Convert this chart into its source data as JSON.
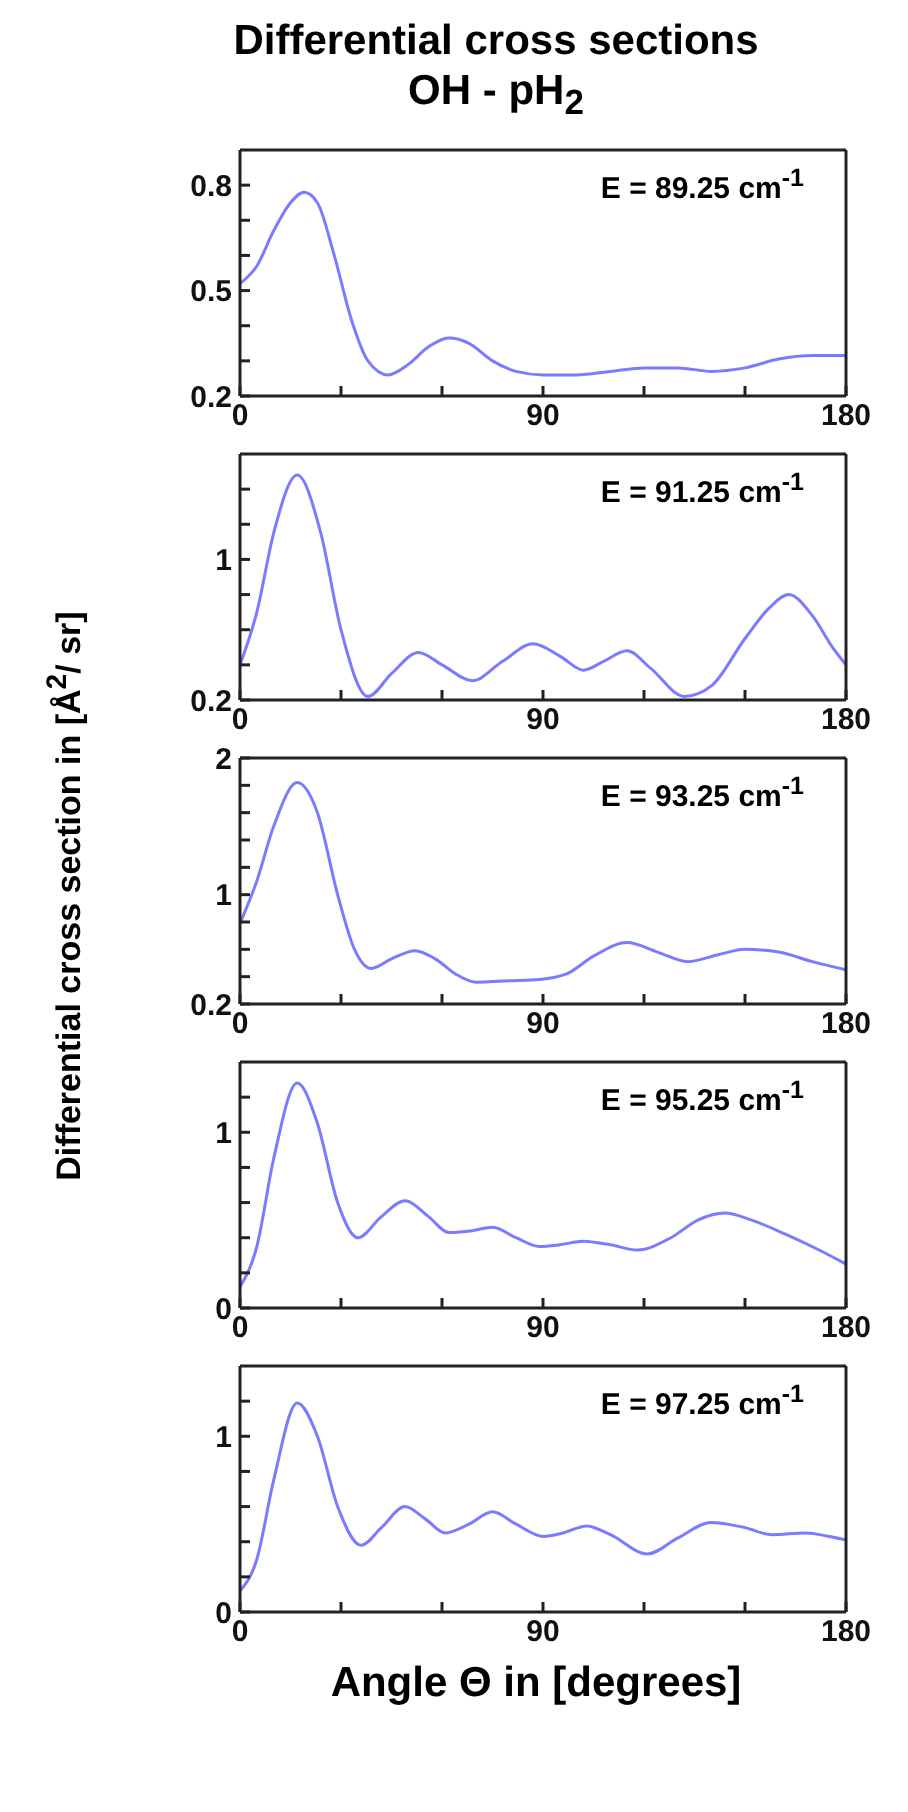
{
  "chart_data": [
    {
      "type": "line",
      "title": "Differential cross sections\nOH - pH$_{2}$",
      "annotations": [
        "E = 89.25 cm$^{-1}$"
      ],
      "grid": false,
      "legend": false,
      "marker": "none",
      "x": [
        0,
        5,
        10,
        15,
        19,
        23,
        28,
        33,
        38,
        44,
        50,
        56,
        62,
        68,
        75,
        82,
        90,
        100,
        110,
        120,
        130,
        140,
        150,
        160,
        170,
        180
      ],
      "series": [
        {
          "color": "#7b7bff",
          "values": [
            0.52,
            0.57,
            0.67,
            0.75,
            0.78,
            0.75,
            0.6,
            0.42,
            0.3,
            0.26,
            0.29,
            0.34,
            0.365,
            0.35,
            0.3,
            0.27,
            0.26,
            0.26,
            0.27,
            0.28,
            0.28,
            0.27,
            0.28,
            0.305,
            0.315,
            0.315
          ]
        }
      ],
      "xlim": [
        0,
        180
      ],
      "xticks": [
        0,
        {
          "value": 30,
          "label": null
        },
        {
          "value": 60,
          "label": null
        },
        90,
        {
          "value": 120,
          "label": null
        },
        {
          "value": 150,
          "label": null
        },
        180
      ],
      "ylim": [
        0.2,
        0.9
      ],
      "yticks": [
        0.2,
        {
          "value": 0.3,
          "label": null
        },
        {
          "value": 0.4,
          "label": null
        },
        0.5,
        {
          "value": 0.6,
          "label": null
        },
        {
          "value": 0.7,
          "label": null
        },
        0.8
      ]
    },
    {
      "type": "line",
      "annotations": [
        "E = 91.25 cm$^{-1}$"
      ],
      "grid": false,
      "legend": false,
      "marker": "none",
      "x": [
        0,
        5,
        10,
        17,
        24,
        30,
        38,
        45,
        53,
        60,
        69,
        78,
        87,
        95,
        102,
        108,
        115,
        122,
        132,
        140,
        150,
        157,
        163,
        170,
        176,
        180
      ],
      "series": [
        {
          "color": "#7b7bff",
          "values": [
            0.4,
            0.7,
            1.15,
            1.48,
            1.15,
            0.6,
            0.22,
            0.35,
            0.47,
            0.4,
            0.31,
            0.42,
            0.52,
            0.45,
            0.37,
            0.42,
            0.48,
            0.38,
            0.22,
            0.28,
            0.55,
            0.72,
            0.8,
            0.68,
            0.5,
            0.4
          ]
        }
      ],
      "xlim": [
        0,
        180
      ],
      "xticks": [
        0,
        {
          "value": 30,
          "label": null
        },
        {
          "value": 60,
          "label": null
        },
        90,
        {
          "value": 120,
          "label": null
        },
        {
          "value": 150,
          "label": null
        },
        180
      ],
      "ylim": [
        0.2,
        1.6
      ],
      "yticks": [
        0.2,
        {
          "value": 0.4,
          "label": null
        },
        {
          "value": 0.6,
          "label": null
        },
        {
          "value": 0.8,
          "label": null
        },
        1,
        {
          "value": 1.2,
          "label": null
        },
        {
          "value": 1.4,
          "label": null
        }
      ]
    },
    {
      "type": "line",
      "ylabel": "Differential cross section in [Å$^{2}$/ sr]",
      "annotations": [
        "E = 93.25 cm$^{-1}$"
      ],
      "grid": false,
      "legend": false,
      "marker": "none",
      "x": [
        0,
        5,
        10,
        17,
        23,
        29,
        34,
        39,
        45,
        52,
        58,
        64,
        70,
        80,
        89,
        97,
        105,
        115,
        124,
        133,
        142,
        150,
        160,
        170,
        180
      ],
      "series": [
        {
          "color": "#7b7bff",
          "values": [
            0.79,
            1.1,
            1.5,
            1.82,
            1.6,
            1.0,
            0.6,
            0.46,
            0.53,
            0.59,
            0.53,
            0.42,
            0.36,
            0.37,
            0.38,
            0.42,
            0.55,
            0.65,
            0.58,
            0.51,
            0.56,
            0.6,
            0.58,
            0.51,
            0.45
          ]
        }
      ],
      "xlim": [
        0,
        180
      ],
      "xticks": [
        0,
        {
          "value": 30,
          "label": null
        },
        {
          "value": 60,
          "label": null
        },
        90,
        {
          "value": 120,
          "label": null
        },
        {
          "value": 150,
          "label": null
        },
        180
      ],
      "ylim": [
        0.2,
        2
      ],
      "yticks": [
        0.2,
        {
          "value": 0.4,
          "label": null
        },
        {
          "value": 0.6,
          "label": null
        },
        {
          "value": 0.8,
          "label": null
        },
        1,
        {
          "value": 1.2,
          "label": null
        },
        {
          "value": 1.4,
          "label": null
        },
        {
          "value": 1.6,
          "label": null
        },
        {
          "value": 1.8,
          "label": null
        },
        2
      ]
    },
    {
      "type": "line",
      "annotations": [
        "E = 95.25 cm$^{-1}$"
      ],
      "grid": false,
      "legend": false,
      "marker": "none",
      "x": [
        0,
        5,
        10,
        17,
        23,
        29,
        35,
        42,
        49,
        56,
        62,
        69,
        75,
        82,
        89,
        95,
        102,
        110,
        118,
        128,
        136,
        144,
        152,
        162,
        172,
        180
      ],
      "series": [
        {
          "color": "#7b7bff",
          "values": [
            0.12,
            0.35,
            0.85,
            1.28,
            1.05,
            0.6,
            0.4,
            0.52,
            0.61,
            0.52,
            0.43,
            0.44,
            0.46,
            0.4,
            0.35,
            0.36,
            0.38,
            0.36,
            0.33,
            0.4,
            0.5,
            0.54,
            0.5,
            0.42,
            0.33,
            0.25
          ]
        }
      ],
      "xlim": [
        0,
        180
      ],
      "xticks": [
        0,
        {
          "value": 30,
          "label": null
        },
        {
          "value": 60,
          "label": null
        },
        90,
        {
          "value": 120,
          "label": null
        },
        {
          "value": 150,
          "label": null
        },
        180
      ],
      "ylim": [
        0,
        1.4
      ],
      "yticks": [
        0,
        {
          "value": 0.2,
          "label": null
        },
        {
          "value": 0.4,
          "label": null
        },
        {
          "value": 0.6,
          "label": null
        },
        {
          "value": 0.8,
          "label": null
        },
        1,
        {
          "value": 1.2,
          "label": null
        }
      ]
    },
    {
      "type": "line",
      "xlabel": "Angle Θ in [degrees]",
      "annotations": [
        "E = 97.25 cm$^{-1}$"
      ],
      "grid": false,
      "legend": false,
      "marker": "none",
      "x": [
        0,
        5,
        10,
        17,
        23,
        29,
        36,
        42,
        49,
        55,
        61,
        68,
        75,
        82,
        90,
        96,
        103,
        110,
        121,
        130,
        140,
        150,
        158,
        168,
        175,
        180
      ],
      "series": [
        {
          "color": "#7b7bff",
          "values": [
            0.12,
            0.3,
            0.75,
            1.19,
            1.0,
            0.6,
            0.38,
            0.48,
            0.6,
            0.53,
            0.45,
            0.5,
            0.57,
            0.5,
            0.43,
            0.45,
            0.49,
            0.44,
            0.33,
            0.42,
            0.51,
            0.48,
            0.44,
            0.45,
            0.43,
            0.41
          ]
        }
      ],
      "xlim": [
        0,
        180
      ],
      "xticks": [
        0,
        {
          "value": 30,
          "label": null
        },
        {
          "value": 60,
          "label": null
        },
        90,
        {
          "value": 120,
          "label": null
        },
        {
          "value": 150,
          "label": null
        },
        180
      ],
      "ylim": [
        0,
        1.4
      ],
      "yticks": [
        0,
        {
          "value": 0.2,
          "label": null
        },
        {
          "value": 0.4,
          "label": null
        },
        {
          "value": 0.6,
          "label": null
        },
        {
          "value": 0.8,
          "label": null
        },
        1,
        {
          "value": 1.2,
          "label": null
        }
      ]
    }
  ]
}
